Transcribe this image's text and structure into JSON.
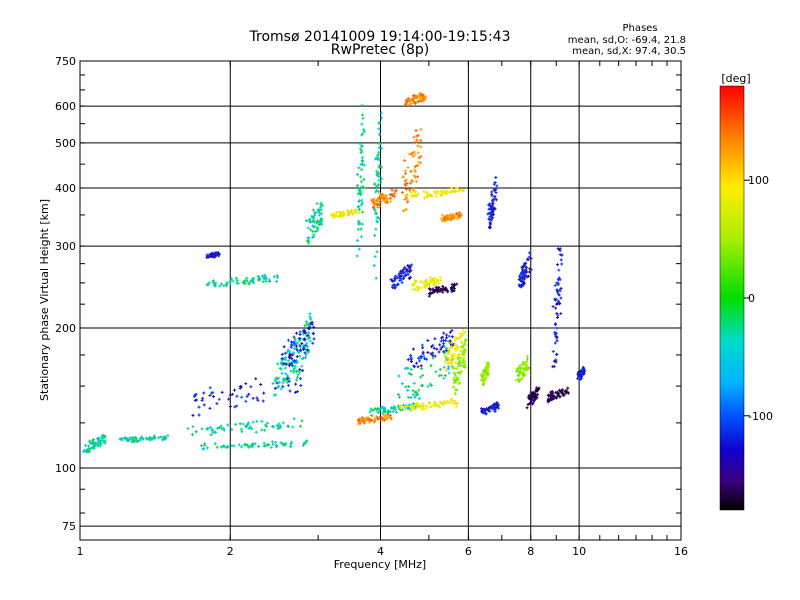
{
  "chart_data": {
    "type": "scatter",
    "title": "Tromsø 20141009 19:14:00-19:15:43",
    "subtitle": "RwPretec (8p)",
    "xlabel": "Frequency [MHz]",
    "ylabel": "Stationary phase Virtual Height [km]",
    "x_scale": "log",
    "y_scale": "log",
    "xlim": [
      1,
      16
    ],
    "ylim": [
      70,
      750
    ],
    "x_ticks": [
      1,
      2,
      4,
      6,
      8,
      10,
      16
    ],
    "x_tick_labels": [
      "1",
      "2",
      "4",
      "6",
      "8",
      "10",
      "16"
    ],
    "y_ticks": [
      75,
      100,
      200,
      300,
      400,
      500,
      600,
      750
    ],
    "y_tick_labels": [
      "75",
      "100",
      "200",
      "300",
      "400",
      "500",
      "600",
      "750"
    ],
    "grid": true,
    "phases_info": {
      "heading": "Phases",
      "line_o": "mean, sd,O: -69.4, 21.8",
      "line_x": "mean, sd,X:  97.4, 30.5"
    },
    "colorbar": {
      "label": "[deg]",
      "tick_labels": [
        "100",
        "0",
        "-100"
      ],
      "tick_values": [
        100,
        0,
        -100
      ],
      "range": [
        -180,
        180
      ]
    },
    "color_key": {
      "-150": "#000000",
      "-110": "#3c0080",
      "-80": "#0030ff",
      "-40": "#00c8ff",
      "0": "#00dd00",
      "60": "#aaee00",
      "100": "#ffee00",
      "140": "#ff8800",
      "180": "#ff0000"
    },
    "series": [
      {
        "phase": -25,
        "traces": [
          {
            "x": [
              1.6,
              2.8
            ],
            "y": [
              116,
              128
            ]
          },
          {
            "x": [
              1.75,
              2.85
            ],
            "y": [
              110,
              114
            ]
          },
          {
            "x": [
              2.7,
              2.9
            ],
            "y": [
              150,
              220
            ]
          },
          {
            "x": [
              2.45,
              2.7
            ],
            "y": [
              140,
              190
            ]
          },
          {
            "x": [
              1.02,
              1.12
            ],
            "y": [
              108,
              118
            ]
          },
          {
            "x": [
              1.2,
              1.5
            ],
            "y": [
              114,
              117
            ]
          },
          {
            "x": [
              1.8,
              2.5
            ],
            "y": [
              245,
              260
            ]
          },
          {
            "x": [
              2.85,
              3.05
            ],
            "y": [
              300,
              380
            ]
          },
          {
            "x": [
              3.6,
              3.7
            ],
            "y": [
              250,
              640
            ]
          },
          {
            "x": [
              3.9,
              4.0
            ],
            "y": [
              240,
              640
            ]
          },
          {
            "x": [
              4.3,
              5.6
            ],
            "y": [
              130,
              195
            ]
          },
          {
            "x": [
              3.8,
              4.7
            ],
            "y": [
              130,
              138
            ]
          }
        ]
      },
      {
        "phase": -90,
        "traces": [
          {
            "x": [
              1.65,
              2.8
            ],
            "y": [
              128,
              165
            ]
          },
          {
            "x": [
              2.55,
              2.95
            ],
            "y": [
              160,
              210
            ]
          },
          {
            "x": [
              1.8,
              1.9
            ],
            "y": [
              284,
              290
            ]
          },
          {
            "x": [
              4.2,
              4.6
            ],
            "y": [
              240,
              275
            ]
          },
          {
            "x": [
              4.55,
              5.6
            ],
            "y": [
              160,
              200
            ]
          },
          {
            "x": [
              6.4,
              6.9
            ],
            "y": [
              130,
              138
            ]
          },
          {
            "x": [
              7.6,
              8.0
            ],
            "y": [
              240,
              290
            ]
          },
          {
            "x": [
              8.9,
              9.2
            ],
            "y": [
              150,
              320
            ]
          },
          {
            "x": [
              10.0,
              10.2
            ],
            "y": [
              155,
              165
            ]
          },
          {
            "x": [
              6.6,
              6.8
            ],
            "y": [
              320,
              420
            ]
          }
        ]
      },
      {
        "phase": -125,
        "traces": [
          {
            "x": [
              8.6,
              9.5
            ],
            "y": [
              138,
              150
            ]
          },
          {
            "x": [
              5.0,
              5.7
            ],
            "y": [
              235,
              250
            ]
          },
          {
            "x": [
              7.9,
              8.3
            ],
            "y": [
              135,
              150
            ]
          }
        ]
      },
      {
        "phase": 140,
        "traces": [
          {
            "x": [
              4.4,
              4.8
            ],
            "y": [
              330,
              560
            ]
          },
          {
            "x": [
              3.85,
              4.3
            ],
            "y": [
              360,
              400
            ]
          },
          {
            "x": [
              3.6,
              4.2
            ],
            "y": [
              125,
              130
            ]
          },
          {
            "x": [
              5.3,
              5.8
            ],
            "y": [
              340,
              355
            ]
          },
          {
            "x": [
              4.5,
              4.9
            ],
            "y": [
              600,
              640
            ]
          }
        ]
      },
      {
        "phase": 95,
        "traces": [
          {
            "x": [
              4.5,
              5.9
            ],
            "y": [
              380,
              400
            ]
          },
          {
            "x": [
              4.4,
              5.7
            ],
            "y": [
              133,
              140
            ]
          },
          {
            "x": [
              4.6,
              5.3
            ],
            "y": [
              240,
              260
            ]
          },
          {
            "x": [
              3.2,
              3.6
            ],
            "y": [
              345,
              360
            ]
          },
          {
            "x": [
              5.4,
              5.9
            ],
            "y": [
              160,
              200
            ]
          }
        ]
      },
      {
        "phase": 50,
        "traces": [
          {
            "x": [
              5.6,
              5.95
            ],
            "y": [
              140,
              195
            ]
          },
          {
            "x": [
              7.5,
              7.9
            ],
            "y": [
              150,
              175
            ]
          },
          {
            "x": [
              6.4,
              6.6
            ],
            "y": [
              150,
              170
            ]
          }
        ]
      }
    ]
  }
}
